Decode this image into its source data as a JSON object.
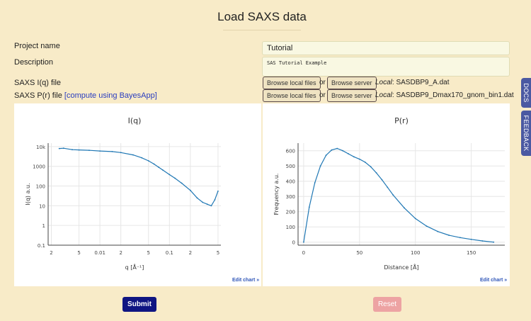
{
  "page": {
    "title": "Load SAXS data"
  },
  "form": {
    "project_label": "Project name",
    "project_value": "Tutorial",
    "description_label": "Description",
    "description_value": "SAS Tutorial Example",
    "iq_label": "SAXS I(q) file",
    "pr_label": "SAXS P(r) file",
    "pr_link": "[compute using BayesApp]",
    "browse_local": "Browse local files",
    "or_text": "or",
    "browse_server": "Browse server",
    "local_prefix": "Local",
    "iq_file": ": SASDBP9_A.dat",
    "pr_file": ": SASDBP9_Dmax170_gnom_bin1.dat"
  },
  "side_tabs": {
    "docs": "DOCS",
    "feedback": "FEEDBACK"
  },
  "buttons": {
    "submit": "Submit",
    "reset": "Reset"
  },
  "edit_chart": "Edit chart »",
  "colors": {
    "line": "#1f77b4",
    "submit": "#0f1582",
    "reset": "#eda3a3",
    "tab": "#4b59a2"
  },
  "chart_data": [
    {
      "type": "line",
      "title": "I(q)",
      "xlabel": "q [Å⁻¹]",
      "ylabel": "I(q) a.u.",
      "x_scale": "log",
      "y_scale": "log",
      "xlim": [
        0.0018,
        0.55
      ],
      "ylim": [
        0.1,
        15000
      ],
      "x_ticks": [
        {
          "v": 0.002,
          "label": "2"
        },
        {
          "v": 0.005,
          "label": "5"
        },
        {
          "v": 0.01,
          "label": "0.01"
        },
        {
          "v": 0.02,
          "label": "2"
        },
        {
          "v": 0.05,
          "label": "5"
        },
        {
          "v": 0.1,
          "label": "0.1"
        },
        {
          "v": 0.2,
          "label": "2"
        },
        {
          "v": 0.5,
          "label": "5"
        }
      ],
      "y_ticks": [
        {
          "v": 0.1,
          "label": "0.1"
        },
        {
          "v": 1,
          "label": "1"
        },
        {
          "v": 10,
          "label": "10"
        },
        {
          "v": 100,
          "label": "100"
        },
        {
          "v": 1000,
          "label": "1000"
        },
        {
          "v": 10000,
          "label": "10k"
        }
      ],
      "series": [
        {
          "x": [
            0.0026,
            0.003,
            0.004,
            0.005,
            0.007,
            0.01,
            0.015,
            0.02,
            0.03,
            0.04,
            0.05,
            0.06,
            0.07,
            0.08,
            0.1,
            0.12,
            0.15,
            0.2,
            0.25,
            0.3,
            0.35,
            0.4,
            0.45,
            0.5
          ],
          "y": [
            8000,
            8300,
            7000,
            6800,
            6500,
            6000,
            5600,
            5000,
            3800,
            2700,
            1900,
            1300,
            900,
            650,
            380,
            250,
            140,
            60,
            25,
            15,
            12,
            10,
            20,
            55
          ]
        }
      ]
    },
    {
      "type": "line",
      "title": "P(r)",
      "xlabel": "Distance [Å]",
      "ylabel": "Frequency a.u.",
      "xlim": [
        -5,
        180
      ],
      "ylim": [
        -20,
        650
      ],
      "x_ticks": [
        0,
        50,
        100,
        150
      ],
      "y_ticks": [
        0,
        100,
        200,
        300,
        400,
        500,
        600
      ],
      "series": [
        {
          "x": [
            0,
            5,
            10,
            15,
            20,
            25,
            30,
            35,
            40,
            45,
            50,
            55,
            60,
            65,
            70,
            75,
            80,
            90,
            100,
            110,
            120,
            130,
            140,
            150,
            160,
            170
          ],
          "y": [
            0,
            230,
            390,
            500,
            570,
            605,
            615,
            600,
            580,
            560,
            545,
            525,
            495,
            455,
            410,
            360,
            310,
            225,
            155,
            105,
            70,
            45,
            30,
            18,
            8,
            0
          ]
        }
      ]
    }
  ]
}
